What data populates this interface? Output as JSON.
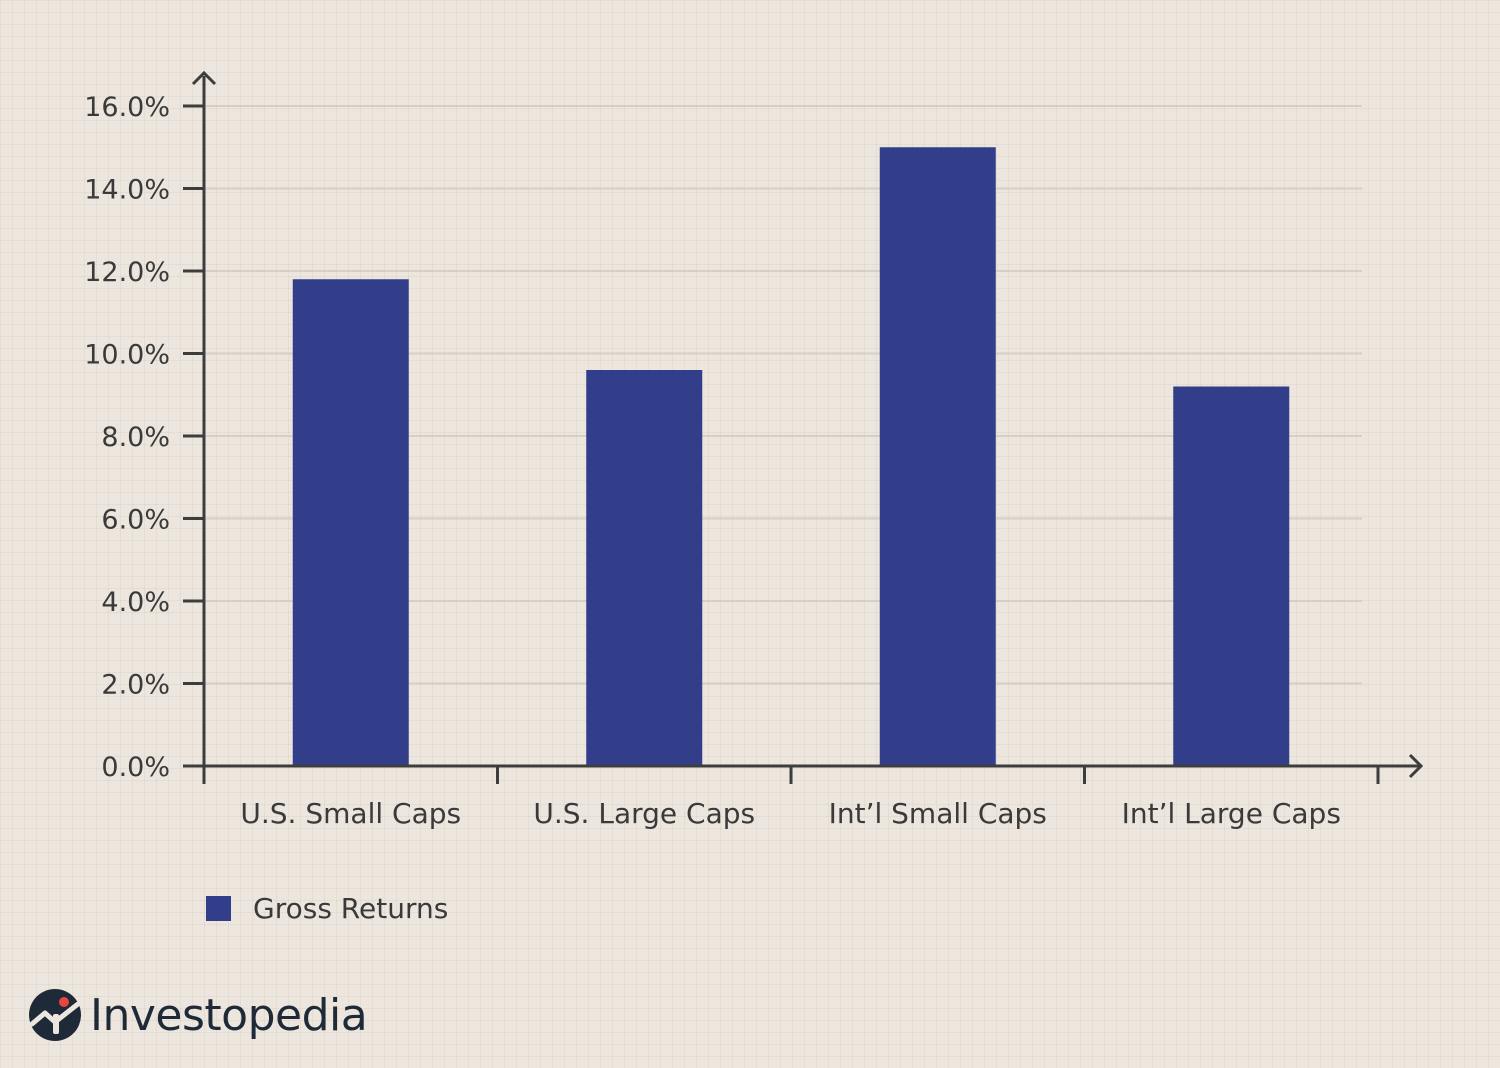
{
  "chart_data": {
    "type": "bar",
    "categories": [
      "U.S. Small Caps",
      "U.S. Large Caps",
      "Int’l Small Caps",
      "Int’l Large Caps"
    ],
    "series": [
      {
        "name": "Gross Returns",
        "values": [
          11.8,
          9.6,
          15.0,
          9.2
        ]
      }
    ],
    "yticks": [
      "0.0%",
      "2.0%",
      "4.0%",
      "6.0%",
      "8.0%",
      "10.0%",
      "12.0%",
      "14.0%",
      "16.0%"
    ],
    "ylim": [
      0,
      16
    ],
    "grid": true,
    "legend_position": "bottom-left",
    "colors": {
      "bar": "#323e8a",
      "axis": "#3d3d3d",
      "grid": "#d6cfc6",
      "accent_dot": "#e8473f"
    }
  },
  "brand": {
    "logo_text": "Investopedia"
  }
}
